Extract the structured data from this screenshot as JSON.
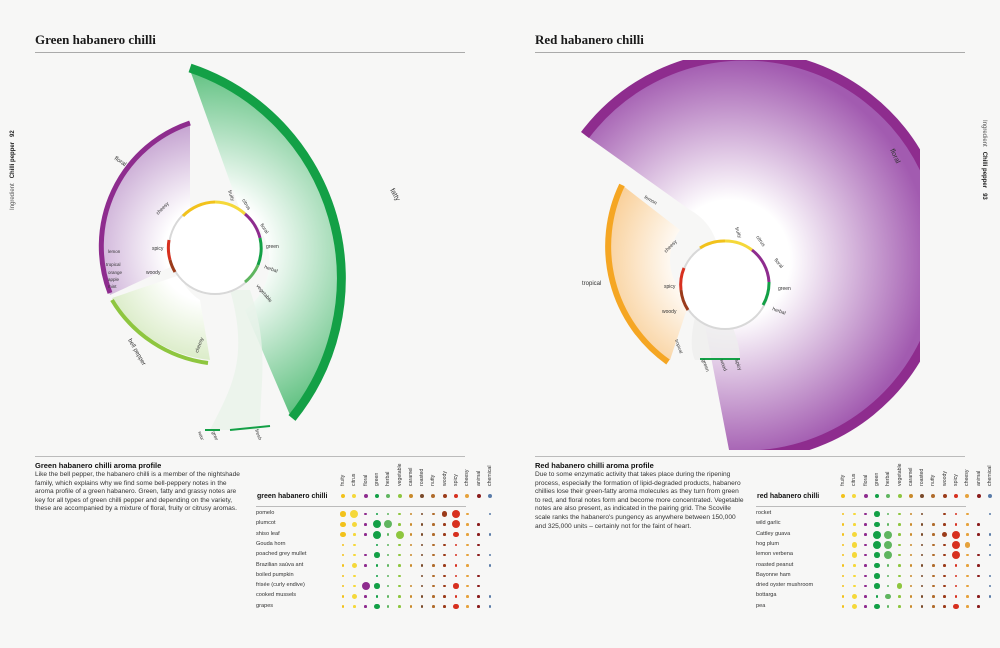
{
  "left_page": {
    "title": "Green habanero chilli",
    "margin_ingredient": "Ingredient",
    "margin_section": "Chilli pepper",
    "page_number": "92",
    "wheel": {
      "outer_labels": [
        "floral",
        "fatty",
        "bell pepper"
      ],
      "bottom_labels": [
        "waxy",
        "green",
        "fresh"
      ],
      "inner_labels": [
        "fruity",
        "citrus",
        "floral",
        "green",
        "herbal",
        "vegetable",
        "woody",
        "spicy",
        "cheesy",
        "lemon",
        "tropical",
        "orange",
        "apple",
        "mint",
        "cheesy"
      ]
    },
    "profile": {
      "title": "Green habanero chilli aroma profile",
      "body": "Like the bell pepper, the habanero chilli is a member of the nightshade family, which explains why we find some bell-peppery notes in the aroma profile of a green habanero. Green, fatty and grassy notes are key for all types of green chilli pepper and depending on the variety, these are accompanied by a mixture of floral, fruity or citrusy aromas."
    },
    "grid": {
      "name": "green habanero chilli",
      "rows": [
        "pomelo",
        "plumcot",
        "shiso leaf",
        "Gouda horn",
        "poached grey mullet",
        "Brazilian saúva ant",
        "boiled pumpkin",
        "frisée (curly endive)",
        "cooked mussels",
        "grapes"
      ]
    }
  },
  "right_page": {
    "title": "Red habanero chilli",
    "margin_ingredient": "Ingredient",
    "margin_section": "Chilli pepper",
    "page_number": "93",
    "wheel": {
      "outer_labels": [
        "floral",
        "tropical"
      ],
      "bottom_labels": [
        "green",
        "wood",
        "spicy"
      ],
      "inner_labels": [
        "fruity",
        "citrus",
        "floral",
        "green",
        "herbal",
        "woody",
        "spicy",
        "cheesy",
        "lemon",
        "tropical"
      ]
    },
    "profile": {
      "title": "Red habanero chilli aroma profile",
      "body": "Due to some enzymatic activity that takes place during the ripening process, especially the formation of lipid-degraded products, habanero chillies lose their green-fatty aroma molecules as they turn from green to red, and floral notes form and become more concentrated. Vegetable notes are also present, as indicated in the pairing grid. The Scoville scale ranks the habanero's pungency as anywhere between 150,000 and 325,000 units – certainly not for the faint of heart."
    },
    "grid": {
      "name": "red habanero chilli",
      "rows": [
        "rocket",
        "wild garlic",
        "Cattley guava",
        "hog plum",
        "lemon verbena",
        "roasted peanut",
        "Bayonne ham",
        "dried oyster mushroom",
        "bottarga",
        "pea"
      ]
    }
  },
  "aroma_columns": [
    "fruity",
    "citrus",
    "floral",
    "green",
    "herbal",
    "vegetable",
    "caramel",
    "roasted",
    "nutty",
    "woody",
    "spicy",
    "cheesy",
    "animal",
    "chemical"
  ],
  "colors": {
    "fruity": "#f2c21b",
    "citrus": "#f5d83a",
    "floral": "#8e2c8e",
    "green": "#13a046",
    "herbal": "#5fb55f",
    "vegetable": "#8ec63f",
    "caramel": "#c98a2b",
    "roasted": "#7a4a2a",
    "nutty": "#b06c2c",
    "woody": "#9b3b1a",
    "spicy": "#d7301f",
    "cheesy": "#e6a23c",
    "animal": "#8a1c1c",
    "chemical": "#5a7ca8",
    "tropical": "#f5a623"
  },
  "grid_left_levels": [
    [
      2,
      3,
      1,
      1,
      1,
      1,
      1,
      1,
      1,
      2,
      3,
      1,
      0,
      1
    ],
    [
      2,
      2,
      1,
      3,
      3,
      1,
      1,
      1,
      1,
      1,
      3,
      1,
      1,
      0
    ],
    [
      2,
      1,
      1,
      3,
      1,
      3,
      1,
      1,
      1,
      1,
      2,
      1,
      1,
      1
    ],
    [
      1,
      1,
      0,
      1,
      1,
      1,
      1,
      1,
      1,
      1,
      1,
      1,
      1,
      0
    ],
    [
      1,
      1,
      1,
      2,
      1,
      1,
      1,
      1,
      1,
      1,
      1,
      1,
      1,
      1
    ],
    [
      1,
      2,
      1,
      1,
      1,
      1,
      1,
      1,
      1,
      1,
      1,
      1,
      0,
      1
    ],
    [
      1,
      1,
      0,
      1,
      1,
      1,
      0,
      1,
      1,
      1,
      1,
      1,
      1,
      0
    ],
    [
      1,
      1,
      3,
      2,
      1,
      1,
      1,
      1,
      1,
      1,
      2,
      1,
      1,
      0
    ],
    [
      1,
      2,
      1,
      1,
      1,
      1,
      1,
      1,
      1,
      1,
      1,
      1,
      1,
      1
    ],
    [
      1,
      1,
      1,
      2,
      1,
      1,
      1,
      1,
      1,
      1,
      2,
      1,
      1,
      1
    ]
  ],
  "grid_right_levels": [
    [
      1,
      1,
      1,
      2,
      1,
      1,
      1,
      1,
      0,
      1,
      1,
      1,
      0,
      1
    ],
    [
      1,
      1,
      1,
      2,
      1,
      1,
      1,
      1,
      1,
      1,
      1,
      1,
      1,
      0
    ],
    [
      1,
      2,
      1,
      3,
      3,
      1,
      1,
      1,
      1,
      2,
      3,
      1,
      1,
      1
    ],
    [
      1,
      2,
      1,
      3,
      3,
      1,
      1,
      1,
      1,
      1,
      3,
      2,
      0,
      1
    ],
    [
      1,
      2,
      1,
      2,
      3,
      1,
      1,
      1,
      1,
      1,
      3,
      1,
      1,
      1
    ],
    [
      1,
      1,
      1,
      2,
      1,
      1,
      1,
      1,
      1,
      1,
      1,
      1,
      1,
      0
    ],
    [
      1,
      1,
      1,
      2,
      1,
      1,
      1,
      1,
      1,
      1,
      1,
      1,
      1,
      1
    ],
    [
      1,
      1,
      1,
      2,
      1,
      2,
      1,
      1,
      1,
      1,
      1,
      1,
      0,
      1
    ],
    [
      1,
      2,
      1,
      1,
      2,
      1,
      1,
      1,
      1,
      1,
      1,
      1,
      1,
      1
    ],
    [
      1,
      2,
      1,
      2,
      1,
      1,
      1,
      1,
      1,
      1,
      2,
      1,
      1,
      0
    ]
  ]
}
